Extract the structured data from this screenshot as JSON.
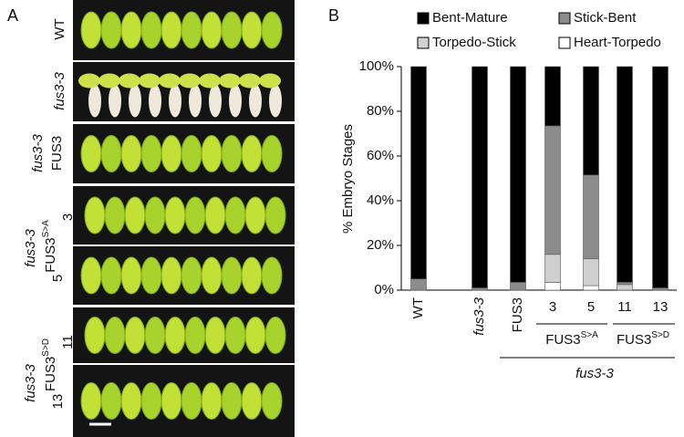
{
  "panel_a": {
    "label": "A",
    "labels": [
      "WT",
      "fus3-3",
      "fus3-3",
      "FUS3",
      "fus3-3",
      "FUS3",
      "S>A",
      "3",
      "5",
      "fus3-3",
      "FUS3",
      "S>D",
      "11",
      "13"
    ]
  },
  "chart_data": {
    "type": "stacked_bar",
    "panel_label": "B",
    "y_label": "% Embryo Stages",
    "categories": [
      "WT",
      "fus3-3",
      "FUS3",
      "3",
      "5",
      "11",
      "13"
    ],
    "series": [
      {
        "name": "Bent-Mature",
        "color": "#000000",
        "values": [
          95,
          99,
          96.5,
          26.5,
          48.5,
          96.5,
          99
        ]
      },
      {
        "name": "Stick-Bent",
        "color": "#8c8c8c",
        "values": [
          5,
          1,
          3.5,
          57.5,
          37.5,
          1,
          1
        ]
      },
      {
        "name": "Torpedo-Stick",
        "color": "#cfcfcf",
        "values": [
          0,
          0,
          0,
          12.5,
          12,
          2.5,
          0
        ]
      },
      {
        "name": "Heart-Torpedo",
        "color": "#ffffff",
        "values": [
          0,
          0,
          0,
          3.5,
          2,
          0,
          0
        ]
      }
    ],
    "group_labels": [
      {
        "text": "FUS3",
        "superscript": "S>A"
      },
      {
        "text": "FUS3",
        "superscript": "S>D"
      }
    ],
    "x_label": "fus3-3",
    "ylim": [
      0,
      100
    ],
    "yticks": [
      {
        "value": 0,
        "label": "0%"
      },
      {
        "value": 20,
        "label": "20%"
      },
      {
        "value": 40,
        "label": "40%"
      },
      {
        "value": 60,
        "label": "60%"
      },
      {
        "value": 80,
        "label": "80%"
      },
      {
        "value": 100,
        "label": "100%"
      }
    ],
    "grid": false,
    "legend": "top"
  }
}
